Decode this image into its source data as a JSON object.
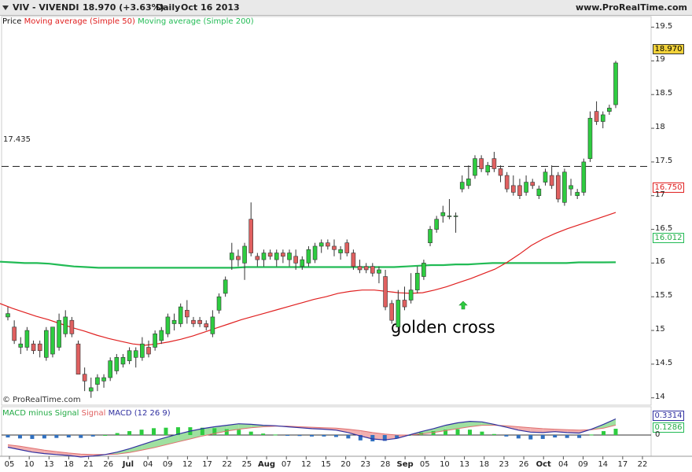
{
  "header": {
    "symbol": "VIV - VIVENDI",
    "quote": "18.970 (+3.63%)",
    "period": "Daily",
    "date": "Oct 16 2013",
    "site": "www.ProRealTime.com"
  },
  "legend": {
    "price": "Price",
    "ma50": "Moving average (Simple 50)",
    "ma200": "Moving average (Simple 200)"
  },
  "macd_legend": {
    "hist": "MACD minus Signal",
    "signal": "Signal",
    "macd": "MACD (12 26 9)"
  },
  "credit": "© ProRealTime.com",
  "annotation": "golden cross",
  "colors": {
    "up": "#2ecc40",
    "down": "#e06060",
    "ma50": "#e02020",
    "ma200": "#22bb55",
    "macd": "#3030a0",
    "signal": "#e07070",
    "hist": "#2ecc40",
    "hist_neg": "#3070c0"
  },
  "chart_data": [
    {
      "type": "candlestick",
      "title": "VIV - VIVENDI",
      "y_axis": {
        "ticks": [
          "19.5",
          "19",
          "18.5",
          "18",
          "17.5",
          "17",
          "16.5",
          "16",
          "15.5",
          "15",
          "14.5",
          "14"
        ],
        "range": [
          13.95,
          19.6
        ]
      },
      "x_axis": {
        "ticks": [
          "05",
          "10",
          "13",
          "18",
          "21",
          "26",
          "Jul",
          "04",
          "09",
          "12",
          "17",
          "22",
          "25",
          "Aug",
          "07",
          "12",
          "15",
          "20",
          "23",
          "28",
          "Sep",
          "05",
          "10",
          "13",
          "18",
          "23",
          "26",
          "Oct",
          "04",
          "09",
          "14",
          "17",
          "22"
        ],
        "month_ticks": [
          "Jul",
          "Aug",
          "Sep",
          "Oct"
        ]
      },
      "reference_line": {
        "value": 17.435,
        "label": "17.435"
      },
      "last_values": {
        "price": "18.970",
        "ma50": "16.750",
        "ma200": "16.012"
      },
      "candles": [
        {
          "o": 15.2,
          "h": 15.35,
          "l": 15.15,
          "c": 15.25
        },
        {
          "o": 15.05,
          "h": 15.15,
          "l": 14.8,
          "c": 14.85
        },
        {
          "o": 14.75,
          "h": 14.9,
          "l": 14.65,
          "c": 14.8
        },
        {
          "o": 14.75,
          "h": 15.05,
          "l": 14.7,
          "c": 15.0
        },
        {
          "o": 14.8,
          "h": 14.85,
          "l": 14.65,
          "c": 14.7
        },
        {
          "o": 14.8,
          "h": 14.85,
          "l": 14.6,
          "c": 14.7
        },
        {
          "o": 14.6,
          "h": 15.05,
          "l": 14.55,
          "c": 15.0
        },
        {
          "o": 14.65,
          "h": 15.05,
          "l": 14.6,
          "c": 15.05
        },
        {
          "o": 14.75,
          "h": 15.25,
          "l": 14.7,
          "c": 15.15
        },
        {
          "o": 14.95,
          "h": 15.3,
          "l": 14.9,
          "c": 15.2
        },
        {
          "o": 15.15,
          "h": 15.2,
          "l": 14.9,
          "c": 14.95
        },
        {
          "o": 14.8,
          "h": 14.85,
          "l": 14.35,
          "c": 14.35
        },
        {
          "o": 14.35,
          "h": 14.45,
          "l": 14.1,
          "c": 14.25
        },
        {
          "o": 14.1,
          "h": 14.3,
          "l": 14.0,
          "c": 14.15
        },
        {
          "o": 14.2,
          "h": 14.35,
          "l": 14.1,
          "c": 14.3
        },
        {
          "o": 14.25,
          "h": 14.35,
          "l": 14.15,
          "c": 14.3
        },
        {
          "o": 14.3,
          "h": 14.6,
          "l": 14.25,
          "c": 14.55
        },
        {
          "o": 14.4,
          "h": 14.65,
          "l": 14.35,
          "c": 14.6
        },
        {
          "o": 14.5,
          "h": 14.65,
          "l": 14.45,
          "c": 14.6
        },
        {
          "o": 14.55,
          "h": 14.75,
          "l": 14.5,
          "c": 14.7
        },
        {
          "o": 14.6,
          "h": 14.75,
          "l": 14.45,
          "c": 14.7
        },
        {
          "o": 14.6,
          "h": 14.9,
          "l": 14.55,
          "c": 14.8
        },
        {
          "o": 14.75,
          "h": 14.85,
          "l": 14.6,
          "c": 14.65
        },
        {
          "o": 14.75,
          "h": 15.0,
          "l": 14.7,
          "c": 14.95
        },
        {
          "o": 14.85,
          "h": 15.05,
          "l": 14.8,
          "c": 15.0
        },
        {
          "o": 14.95,
          "h": 15.25,
          "l": 14.9,
          "c": 15.2
        },
        {
          "o": 15.1,
          "h": 15.25,
          "l": 15.0,
          "c": 15.15
        },
        {
          "o": 15.1,
          "h": 15.4,
          "l": 15.05,
          "c": 15.35
        },
        {
          "o": 15.3,
          "h": 15.45,
          "l": 15.1,
          "c": 15.2
        },
        {
          "o": 15.15,
          "h": 15.2,
          "l": 15.05,
          "c": 15.1
        },
        {
          "o": 15.15,
          "h": 15.2,
          "l": 15.05,
          "c": 15.1
        },
        {
          "o": 15.1,
          "h": 15.15,
          "l": 15.0,
          "c": 15.05
        },
        {
          "o": 14.95,
          "h": 15.3,
          "l": 14.9,
          "c": 15.2
        },
        {
          "o": 15.3,
          "h": 15.55,
          "l": 15.25,
          "c": 15.5
        },
        {
          "o": 15.55,
          "h": 15.8,
          "l": 15.5,
          "c": 15.75
        },
        {
          "o": 16.05,
          "h": 16.3,
          "l": 15.9,
          "c": 16.15
        },
        {
          "o": 16.1,
          "h": 16.2,
          "l": 15.95,
          "c": 16.05
        },
        {
          "o": 16.0,
          "h": 16.3,
          "l": 15.75,
          "c": 16.25
        },
        {
          "o": 16.65,
          "h": 16.9,
          "l": 16.1,
          "c": 16.15
        },
        {
          "o": 16.1,
          "h": 16.15,
          "l": 15.95,
          "c": 16.05
        },
        {
          "o": 16.05,
          "h": 16.2,
          "l": 15.95,
          "c": 16.15
        },
        {
          "o": 16.15,
          "h": 16.2,
          "l": 16.05,
          "c": 16.1
        },
        {
          "o": 16.05,
          "h": 16.2,
          "l": 15.95,
          "c": 16.15
        },
        {
          "o": 16.15,
          "h": 16.2,
          "l": 16.0,
          "c": 16.1
        },
        {
          "o": 16.05,
          "h": 16.2,
          "l": 15.95,
          "c": 16.15
        },
        {
          "o": 16.1,
          "h": 16.2,
          "l": 15.9,
          "c": 16.0
        },
        {
          "o": 15.95,
          "h": 16.1,
          "l": 15.9,
          "c": 16.05
        },
        {
          "o": 16.0,
          "h": 16.25,
          "l": 15.95,
          "c": 16.2
        },
        {
          "o": 16.05,
          "h": 16.3,
          "l": 16.0,
          "c": 16.25
        },
        {
          "o": 16.25,
          "h": 16.35,
          "l": 16.15,
          "c": 16.3
        },
        {
          "o": 16.3,
          "h": 16.35,
          "l": 16.2,
          "c": 16.25
        },
        {
          "o": 16.25,
          "h": 16.35,
          "l": 16.1,
          "c": 16.2
        },
        {
          "o": 16.15,
          "h": 16.25,
          "l": 16.05,
          "c": 16.2
        },
        {
          "o": 16.3,
          "h": 16.35,
          "l": 16.1,
          "c": 16.15
        },
        {
          "o": 16.15,
          "h": 16.2,
          "l": 15.9,
          "c": 15.95
        },
        {
          "o": 15.95,
          "h": 16.05,
          "l": 15.85,
          "c": 15.9
        },
        {
          "o": 15.95,
          "h": 16.0,
          "l": 15.85,
          "c": 15.9
        },
        {
          "o": 15.95,
          "h": 16.0,
          "l": 15.8,
          "c": 15.85
        },
        {
          "o": 15.85,
          "h": 15.95,
          "l": 15.7,
          "c": 15.9
        },
        {
          "o": 15.8,
          "h": 15.9,
          "l": 15.3,
          "c": 15.35
        },
        {
          "o": 15.4,
          "h": 15.45,
          "l": 15.1,
          "c": 15.15
        },
        {
          "o": 15.05,
          "h": 15.6,
          "l": 15.0,
          "c": 15.45
        },
        {
          "o": 15.45,
          "h": 15.65,
          "l": 15.3,
          "c": 15.35
        },
        {
          "o": 15.45,
          "h": 15.85,
          "l": 15.4,
          "c": 15.6
        },
        {
          "o": 15.6,
          "h": 15.95,
          "l": 15.55,
          "c": 15.85
        },
        {
          "o": 15.8,
          "h": 16.05,
          "l": 15.75,
          "c": 16.0
        },
        {
          "o": 16.3,
          "h": 16.55,
          "l": 16.25,
          "c": 16.5
        },
        {
          "o": 16.5,
          "h": 16.7,
          "l": 16.45,
          "c": 16.65
        },
        {
          "o": 16.7,
          "h": 16.85,
          "l": 16.6,
          "c": 16.75
        },
        {
          "o": 16.7,
          "h": 16.95,
          "l": 16.65,
          "c": 16.7
        },
        {
          "o": 16.7,
          "h": 16.75,
          "l": 16.45,
          "c": 16.7
        },
        {
          "o": 17.1,
          "h": 17.3,
          "l": 17.05,
          "c": 17.2
        },
        {
          "o": 17.15,
          "h": 17.45,
          "l": 17.1,
          "c": 17.25
        },
        {
          "o": 17.3,
          "h": 17.6,
          "l": 17.25,
          "c": 17.55
        },
        {
          "o": 17.55,
          "h": 17.6,
          "l": 17.35,
          "c": 17.4
        },
        {
          "o": 17.35,
          "h": 17.5,
          "l": 17.3,
          "c": 17.45
        },
        {
          "o": 17.55,
          "h": 17.65,
          "l": 17.35,
          "c": 17.4
        },
        {
          "o": 17.4,
          "h": 17.45,
          "l": 17.2,
          "c": 17.3
        },
        {
          "o": 17.3,
          "h": 17.35,
          "l": 17.05,
          "c": 17.1
        },
        {
          "o": 17.15,
          "h": 17.3,
          "l": 17.0,
          "c": 17.05
        },
        {
          "o": 17.15,
          "h": 17.25,
          "l": 16.95,
          "c": 17.0
        },
        {
          "o": 17.05,
          "h": 17.3,
          "l": 17.0,
          "c": 17.2
        },
        {
          "o": 17.2,
          "h": 17.25,
          "l": 17.1,
          "c": 17.15
        },
        {
          "o": 17.0,
          "h": 17.15,
          "l": 16.95,
          "c": 17.1
        },
        {
          "o": 17.2,
          "h": 17.4,
          "l": 17.15,
          "c": 17.35
        },
        {
          "o": 17.3,
          "h": 17.45,
          "l": 17.1,
          "c": 17.15
        },
        {
          "o": 17.3,
          "h": 17.35,
          "l": 16.9,
          "c": 16.95
        },
        {
          "o": 16.9,
          "h": 17.4,
          "l": 16.85,
          "c": 17.35
        },
        {
          "o": 17.1,
          "h": 17.25,
          "l": 17.0,
          "c": 17.15
        },
        {
          "o": 17.0,
          "h": 17.1,
          "l": 16.95,
          "c": 17.05
        },
        {
          "o": 17.05,
          "h": 17.55,
          "l": 17.0,
          "c": 17.5
        },
        {
          "o": 17.55,
          "h": 18.25,
          "l": 17.5,
          "c": 18.15
        },
        {
          "o": 18.25,
          "h": 18.4,
          "l": 18.05,
          "c": 18.1
        },
        {
          "o": 18.1,
          "h": 18.25,
          "l": 18.0,
          "c": 18.2
        },
        {
          "o": 18.25,
          "h": 18.35,
          "l": 18.2,
          "c": 18.3
        },
        {
          "o": 18.35,
          "h": 19.0,
          "l": 18.3,
          "c": 18.97
        }
      ],
      "ma50": [
        15.4,
        15.33,
        15.27,
        15.21,
        15.16,
        15.1,
        15.04,
        14.99,
        14.93,
        14.88,
        14.84,
        14.8,
        14.78,
        14.8,
        14.83,
        14.87,
        14.92,
        14.98,
        15.04,
        15.1,
        15.16,
        15.21,
        15.26,
        15.31,
        15.36,
        15.41,
        15.46,
        15.5,
        15.55,
        15.58,
        15.6,
        15.6,
        15.58,
        15.56,
        15.55,
        15.56,
        15.6,
        15.65,
        15.71,
        15.77,
        15.84,
        15.91,
        16.01,
        16.13,
        16.26,
        16.36,
        16.44,
        16.51,
        16.57,
        16.63,
        16.69,
        16.75
      ],
      "ma200": [
        16.02,
        16.01,
        16.0,
        16.0,
        15.99,
        15.97,
        15.95,
        15.94,
        15.93,
        15.93,
        15.93,
        15.93,
        15.93,
        15.93,
        15.93,
        15.93,
        15.93,
        15.93,
        15.93,
        15.93,
        15.94,
        15.94,
        15.94,
        15.94,
        15.94,
        15.94,
        15.94,
        15.94,
        15.94,
        15.94,
        15.94,
        15.94,
        15.94,
        15.95,
        15.96,
        15.97,
        15.97,
        15.98,
        15.98,
        15.99,
        16.0,
        16.0,
        16.0,
        16.0,
        16.0,
        16.0,
        16.0,
        16.01,
        16.01,
        16.01,
        16.012
      ]
    },
    {
      "type": "macd",
      "title": "MACD (12 26 9)",
      "y_axis": {
        "ticks": [
          "0"
        ]
      },
      "last_values": {
        "macd": "0.3314",
        "hist": "0.1286"
      },
      "macd": [
        -0.25,
        -0.3,
        -0.35,
        -0.38,
        -0.4,
        -0.42,
        -0.45,
        -0.43,
        -0.4,
        -0.35,
        -0.28,
        -0.2,
        -0.12,
        -0.05,
        0.02,
        0.08,
        0.13,
        0.17,
        0.2,
        0.23,
        0.22,
        0.2,
        0.19,
        0.17,
        0.15,
        0.13,
        0.12,
        0.1,
        0.05,
        -0.02,
        -0.08,
        -0.1,
        -0.07,
        0.0,
        0.07,
        0.13,
        0.2,
        0.25,
        0.28,
        0.27,
        0.22,
        0.16,
        0.1,
        0.06,
        0.05,
        0.07,
        0.05,
        0.04,
        0.12,
        0.22,
        0.3314
      ],
      "signal": [
        -0.2,
        -0.23,
        -0.27,
        -0.31,
        -0.34,
        -0.37,
        -0.39,
        -0.4,
        -0.4,
        -0.39,
        -0.36,
        -0.31,
        -0.26,
        -0.2,
        -0.14,
        -0.08,
        -0.02,
        0.03,
        0.08,
        0.12,
        0.15,
        0.17,
        0.18,
        0.18,
        0.17,
        0.16,
        0.15,
        0.14,
        0.12,
        0.09,
        0.05,
        0.02,
        0.0,
        0.0,
        0.02,
        0.05,
        0.09,
        0.13,
        0.17,
        0.2,
        0.2,
        0.19,
        0.17,
        0.15,
        0.13,
        0.12,
        0.11,
        0.1,
        0.11,
        0.14,
        0.2028
      ],
      "hist": [
        -0.05,
        -0.07,
        -0.08,
        -0.07,
        -0.06,
        -0.05,
        -0.06,
        -0.03,
        0.0,
        0.04,
        0.08,
        0.11,
        0.14,
        0.15,
        0.16,
        0.16,
        0.15,
        0.14,
        0.12,
        0.11,
        0.07,
        0.03,
        0.01,
        -0.01,
        -0.02,
        -0.03,
        -0.03,
        -0.04,
        -0.07,
        -0.11,
        -0.13,
        -0.12,
        -0.07,
        0.0,
        0.05,
        0.08,
        0.11,
        0.12,
        0.11,
        0.07,
        0.02,
        -0.03,
        -0.07,
        -0.09,
        -0.08,
        -0.05,
        -0.06,
        -0.06,
        0.01,
        0.08,
        0.1286
      ]
    }
  ]
}
